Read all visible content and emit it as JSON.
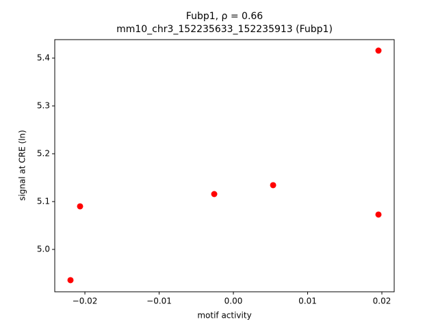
{
  "chart_data": {
    "type": "scatter",
    "title": "Fubp1, ρ = 0.66",
    "subtitle": "mm10_chr3_152235633_152235913 (Fubp1)",
    "x_label": "motif activity",
    "y_label": "signal at CRE (ln)",
    "color": "#ff0000",
    "x": [
      -0.02194,
      -0.02065,
      -0.00258,
      0.00535,
      0.01954,
      0.01954
    ],
    "values": [
      4.9357,
      5.09,
      5.1157,
      5.1343,
      5.0729,
      5.4157
    ],
    "xlim": [
      -0.02406,
      0.02166
    ],
    "ylim": [
      4.9114,
      5.4386
    ],
    "xticks": [
      {
        "value": -0.02,
        "label": "−0.02"
      },
      {
        "value": -0.01,
        "label": "−0.01"
      },
      {
        "value": 0,
        "label": "0.00"
      },
      0.01,
      0.02
    ],
    "yticks": [
      {
        "value": 5,
        "label": "5.0"
      },
      5.1,
      5.2,
      5.3,
      5.4
    ]
  }
}
